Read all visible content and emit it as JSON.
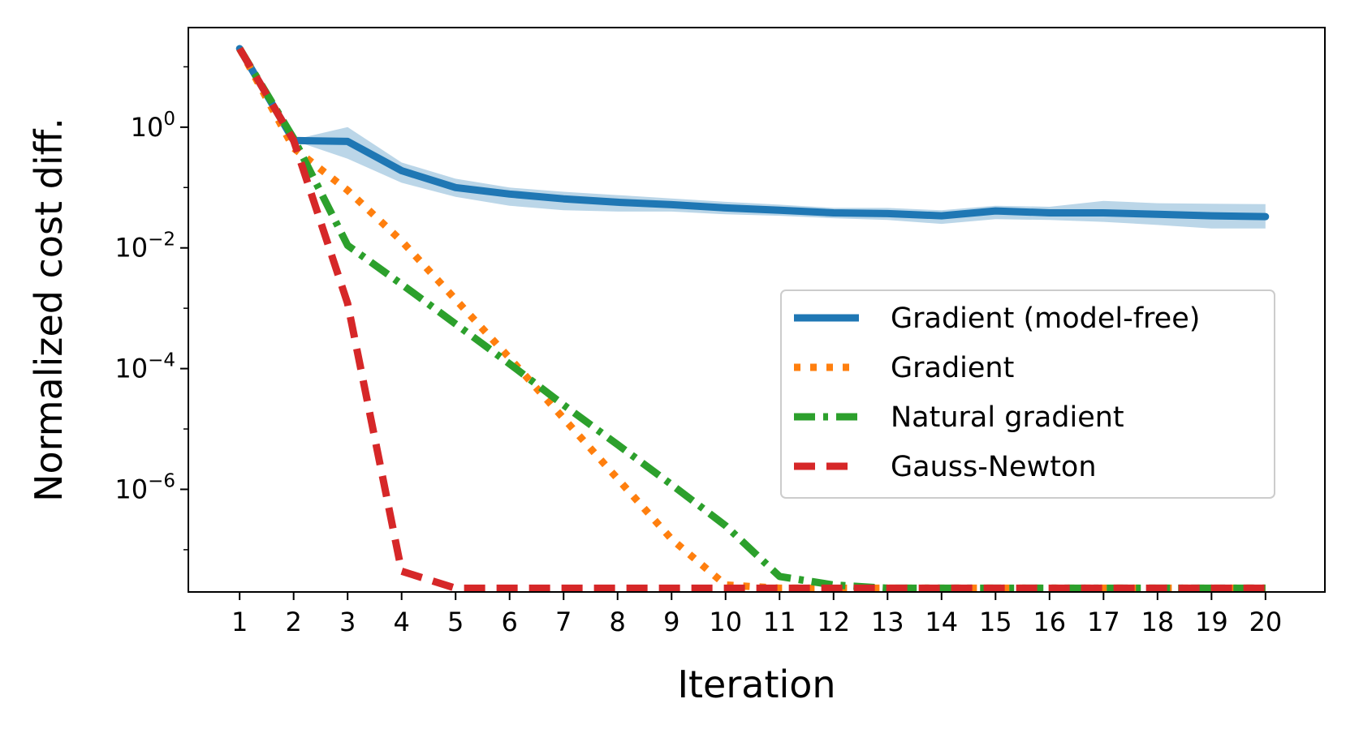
{
  "chart_data": {
    "type": "line",
    "xlabel": "Iteration",
    "ylabel": "Normalized cost diff.",
    "yscale": "log",
    "xlim": [
      0.05,
      21.1
    ],
    "ylim_log10": [
      -7.7,
      1.65
    ],
    "x_ticks": [
      1,
      2,
      3,
      4,
      5,
      6,
      7,
      8,
      9,
      10,
      11,
      12,
      13,
      14,
      15,
      16,
      17,
      18,
      19,
      20
    ],
    "y_ticks": [
      {
        "exp": 0,
        "base": "10",
        "sup": "0"
      },
      {
        "exp": -2,
        "base": "10",
        "sup": "−2"
      },
      {
        "exp": -4,
        "base": "10",
        "sup": "−4"
      },
      {
        "exp": -6,
        "base": "10",
        "sup": "−6"
      }
    ],
    "legend_position": "center-right",
    "x": [
      1,
      2,
      3,
      4,
      5,
      6,
      7,
      8,
      9,
      10,
      11,
      12,
      13,
      14,
      15,
      16,
      17,
      18,
      19,
      20
    ],
    "series": [
      {
        "name": "Gradient (model-free)",
        "color": "#1f77b4",
        "style": "solid",
        "values": [
          20,
          0.6,
          0.58,
          0.19,
          0.1,
          0.078,
          0.065,
          0.057,
          0.052,
          0.046,
          0.042,
          0.038,
          0.037,
          0.034,
          0.041,
          0.038,
          0.038,
          0.036,
          0.034,
          0.033
        ],
        "band_lower": [
          20,
          0.6,
          0.3,
          0.12,
          0.07,
          0.05,
          0.042,
          0.04,
          0.04,
          0.036,
          0.034,
          0.031,
          0.029,
          0.025,
          0.03,
          0.029,
          0.027,
          0.024,
          0.021,
          0.021
        ],
        "band_upper": [
          20,
          0.62,
          1.0,
          0.26,
          0.14,
          0.1,
          0.085,
          0.075,
          0.066,
          0.058,
          0.052,
          0.046,
          0.046,
          0.042,
          0.05,
          0.048,
          0.06,
          0.055,
          0.054,
          0.053
        ]
      },
      {
        "name": "Gradient",
        "color": "#ff7f0e",
        "style": "dotted",
        "values": [
          20,
          0.45,
          0.09,
          0.013,
          0.0014,
          0.00015,
          1.5e-05,
          1.5e-06,
          1.5e-07,
          2.6e-08,
          2.3e-08,
          2.3e-08,
          2.3e-08,
          2.3e-08,
          2.3e-08,
          2.3e-08,
          2.3e-08,
          2.3e-08,
          2.3e-08,
          2.3e-08
        ]
      },
      {
        "name": "Natural gradient",
        "color": "#2ca02c",
        "style": "dashdot",
        "values": [
          20,
          0.65,
          0.011,
          0.0025,
          0.00055,
          0.00012,
          2.5e-05,
          5.5e-06,
          1.2e-06,
          2.5e-07,
          3.6e-08,
          2.6e-08,
          2.3e-08,
          2.3e-08,
          2.3e-08,
          2.3e-08,
          2.3e-08,
          2.3e-08,
          2.3e-08,
          2.3e-08
        ]
      },
      {
        "name": "Gauss-Newton",
        "color": "#d62728",
        "style": "dashed",
        "values": [
          20,
          0.6,
          0.0012,
          4.4e-08,
          2.3e-08,
          2.3e-08,
          2.3e-08,
          2.3e-08,
          2.3e-08,
          2.3e-08,
          2.3e-08,
          2.3e-08,
          2.3e-08,
          2.3e-08,
          2.3e-08,
          2.3e-08,
          2.3e-08,
          2.3e-08,
          2.3e-08,
          2.3e-08
        ]
      }
    ]
  }
}
